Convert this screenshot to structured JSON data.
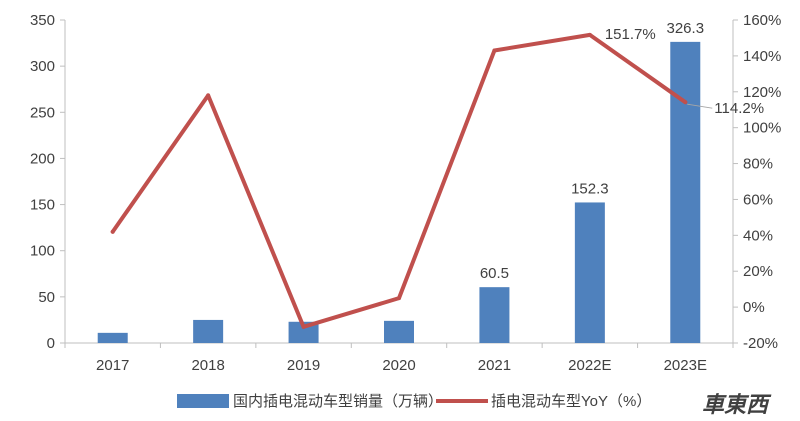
{
  "chart_data": {
    "type": "bar",
    "categories": [
      "2017",
      "2018",
      "2019",
      "2020",
      "2021",
      "2022E",
      "2023E"
    ],
    "series": [
      {
        "name": "国内插电混动车型销量（万辆）",
        "type": "bar",
        "axis": "left",
        "color": "#4f81bd",
        "values": [
          11,
          25,
          23,
          24,
          60.5,
          152.3,
          326.3
        ],
        "data_labels": [
          "",
          "",
          "",
          "",
          "60.5",
          "152.3",
          "326.3"
        ]
      },
      {
        "name": "插电混动车型YoY（%）",
        "type": "line",
        "axis": "right",
        "color": "#c0504d",
        "values": [
          42,
          118,
          -11,
          5,
          143,
          151.7,
          114.2
        ],
        "data_labels": [
          "",
          "",
          "",
          "",
          "",
          "151.7%",
          "114.2%"
        ]
      }
    ],
    "y_left": {
      "ylim": [
        0,
        350
      ],
      "ticks": [
        "0",
        "50",
        "100",
        "150",
        "200",
        "250",
        "300",
        "350"
      ]
    },
    "y_right": {
      "ylim": [
        -20,
        160
      ],
      "ticks": [
        "-20%",
        "0%",
        "20%",
        "40%",
        "60%",
        "80%",
        "100%",
        "120%",
        "140%",
        "160%"
      ]
    },
    "grid": false,
    "legend_position": "bottom"
  },
  "watermark": "車東西"
}
